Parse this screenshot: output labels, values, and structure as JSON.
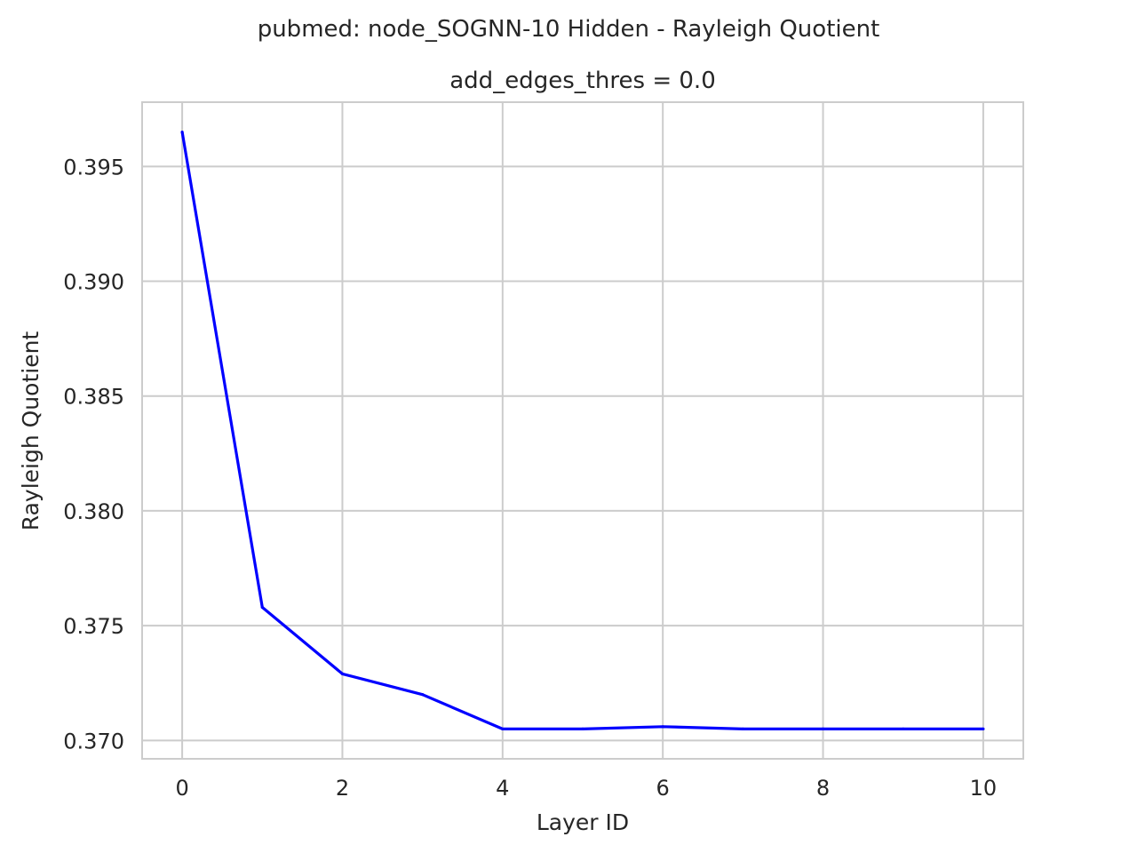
{
  "chart_data": {
    "type": "line",
    "suptitle": "pubmed: node_SOGNN-10 Hidden - Rayleigh Quotient",
    "title": "add_edges_thres = 0.0",
    "xlabel": "Layer ID",
    "ylabel": "Rayleigh Quotient",
    "xlim": [
      -0.5,
      10.5
    ],
    "ylim": [
      0.3692,
      0.3978
    ],
    "xticks": [
      0,
      2,
      4,
      6,
      8,
      10
    ],
    "xtick_labels": [
      "0",
      "2",
      "4",
      "6",
      "8",
      "10"
    ],
    "yticks": [
      0.37,
      0.375,
      0.38,
      0.385,
      0.39,
      0.395
    ],
    "ytick_labels": [
      "0.370",
      "0.375",
      "0.380",
      "0.385",
      "0.390",
      "0.395"
    ],
    "grid": true,
    "series": [
      {
        "color": "#0000ff",
        "x": [
          0,
          1,
          2,
          3,
          4,
          5,
          6,
          7,
          8,
          9,
          10
        ],
        "y": [
          0.3965,
          0.3758,
          0.3729,
          0.372,
          0.3705,
          0.3705,
          0.3706,
          0.3705,
          0.3705,
          0.3705,
          0.3705
        ]
      }
    ]
  }
}
